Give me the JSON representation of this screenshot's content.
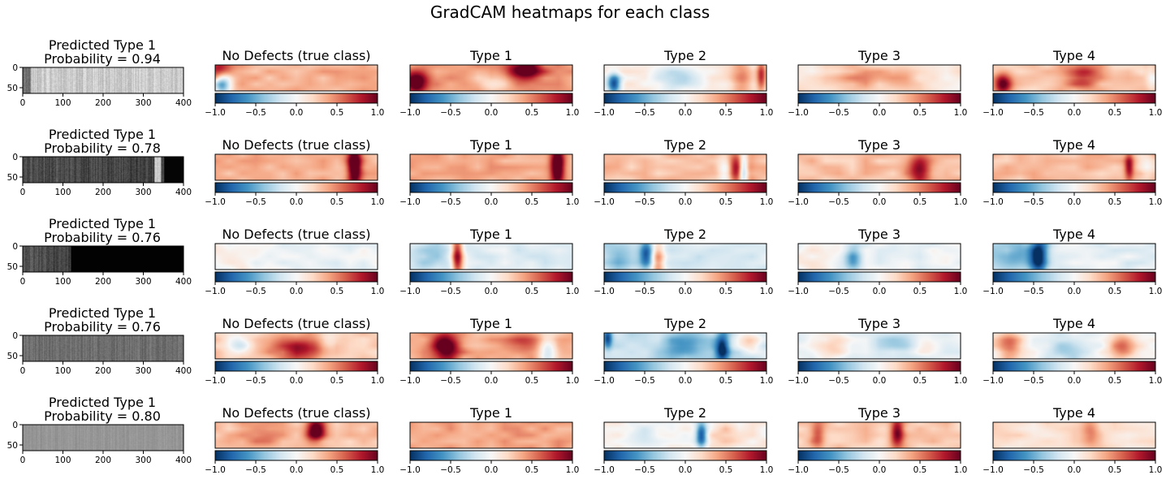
{
  "figure": {
    "title": "GradCAM heatmaps for each class"
  },
  "chart_data": {
    "type": "heatmap",
    "input_image": {
      "xticks": [
        0,
        100,
        200,
        300,
        400
      ],
      "yticks": [
        0,
        50
      ],
      "xlim": [
        0,
        400
      ],
      "ylim": [
        64,
        0
      ],
      "colormap": "gray"
    },
    "heatmap_colorbar": {
      "ticks": [
        -1.0,
        -0.5,
        0.0,
        0.5,
        1.0
      ],
      "tick_labels": [
        "−1.0",
        "−0.5",
        "0.0",
        "0.5",
        "1.0"
      ],
      "range": [
        -1.0,
        1.0
      ],
      "colormap": "RdBu_r",
      "colors": {
        "low": "#08519c",
        "mid": "#f7f7f7",
        "high": "#8b0a1f"
      }
    },
    "class_titles": [
      "No Defects (true class)",
      "Type 1",
      "Type 2",
      "Type 3",
      "Type 4"
    ],
    "rows": [
      {
        "predicted": "Predicted Type 1",
        "probability": "Probability = 0.94",
        "image_style": "light",
        "heatmaps": [
          {
            "base": 0.35,
            "blobs": [
              [
                0.04,
                0.75,
                -0.95,
                0.04,
                0.35
              ],
              [
                0.02,
                0.2,
                0.7,
                0.05,
                0.3
              ]
            ]
          },
          {
            "base": 0.42,
            "blobs": [
              [
                0.7,
                0.2,
                0.8,
                0.08,
                0.3
              ],
              [
                0.04,
                0.7,
                0.8,
                0.05,
                0.3
              ],
              [
                0.5,
                0.7,
                -0.25,
                0.08,
                0.3
              ]
            ]
          },
          {
            "base": 0.1,
            "blobs": [
              [
                0.06,
                0.75,
                -1.0,
                0.03,
                0.3
              ],
              [
                0.45,
                0.5,
                -0.35,
                0.12,
                0.4
              ],
              [
                0.85,
                0.5,
                0.45,
                0.05,
                0.5
              ],
              [
                0.97,
                0.4,
                0.6,
                0.02,
                0.5
              ]
            ]
          },
          {
            "base": 0.12,
            "blobs": [
              [
                0.35,
                0.5,
                0.3,
                0.1,
                0.4
              ],
              [
                0.6,
                0.4,
                0.25,
                0.1,
                0.4
              ]
            ]
          },
          {
            "base": 0.25,
            "blobs": [
              [
                0.06,
                0.75,
                0.85,
                0.04,
                0.3
              ],
              [
                0.55,
                0.4,
                0.5,
                0.08,
                0.4
              ],
              [
                0.98,
                0.5,
                -0.2,
                0.02,
                0.4
              ]
            ]
          }
        ]
      },
      {
        "predicted": "Predicted Type 1",
        "probability": "Probability = 0.78",
        "image_style": "dark-right",
        "heatmaps": [
          {
            "base": 0.35,
            "blobs": [
              [
                0.86,
                0.5,
                0.95,
                0.03,
                0.6
              ]
            ]
          },
          {
            "base": 0.38,
            "blobs": [
              [
                0.91,
                0.5,
                0.95,
                0.03,
                0.6
              ]
            ]
          },
          {
            "base": 0.3,
            "blobs": [
              [
                0.86,
                0.6,
                -0.9,
                0.02,
                0.5
              ],
              [
                0.75,
                0.7,
                -0.5,
                0.03,
                0.4
              ],
              [
                0.82,
                0.5,
                0.6,
                0.05,
                0.5
              ]
            ]
          },
          {
            "base": 0.3,
            "blobs": [
              [
                0.75,
                0.6,
                0.6,
                0.05,
                0.4
              ]
            ]
          },
          {
            "base": 0.3,
            "blobs": [
              [
                0.84,
                0.5,
                0.6,
                0.02,
                0.4
              ],
              [
                0.95,
                0.5,
                -0.2,
                0.03,
                0.4
              ]
            ]
          }
        ]
      },
      {
        "predicted": "Predicted Type 1",
        "probability": "Probability = 0.76",
        "image_style": "dark-left",
        "heatmaps": [
          {
            "base": -0.05,
            "blobs": [
              [
                0.1,
                0.5,
                0.15,
                0.1,
                0.5
              ]
            ]
          },
          {
            "base": -0.12,
            "blobs": [
              [
                0.29,
                0.5,
                1.0,
                0.025,
                0.6
              ],
              [
                0.1,
                0.5,
                -0.25,
                0.08,
                0.5
              ]
            ]
          },
          {
            "base": -0.15,
            "blobs": [
              [
                0.26,
                0.4,
                -0.7,
                0.03,
                0.4
              ],
              [
                0.33,
                0.6,
                0.65,
                0.03,
                0.5
              ],
              [
                0.1,
                0.5,
                -0.3,
                0.08,
                0.5
              ]
            ]
          },
          {
            "base": -0.05,
            "blobs": [
              [
                0.34,
                0.6,
                -0.5,
                0.04,
                0.5
              ],
              [
                0.1,
                0.5,
                0.15,
                0.08,
                0.5
              ]
            ]
          },
          {
            "base": -0.1,
            "blobs": [
              [
                0.28,
                0.5,
                -0.95,
                0.04,
                0.6
              ],
              [
                0.12,
                0.5,
                -0.4,
                0.1,
                0.5
              ]
            ]
          }
        ]
      },
      {
        "predicted": "Predicted Type 1",
        "probability": "Probability = 0.76",
        "image_style": "medium",
        "heatmaps": [
          {
            "base": 0.25,
            "blobs": [
              [
                0.15,
                0.4,
                -0.4,
                0.05,
                0.3
              ],
              [
                0.45,
                0.6,
                0.4,
                0.1,
                0.4
              ],
              [
                0.7,
                0.3,
                -0.3,
                0.05,
                0.3
              ],
              [
                0.6,
                0.6,
                0.45,
                0.08,
                0.3
              ]
            ]
          },
          {
            "base": 0.35,
            "blobs": [
              [
                0.22,
                0.5,
                0.85,
                0.06,
                0.4
              ],
              [
                0.85,
                0.7,
                -0.55,
                0.04,
                0.4
              ],
              [
                0.7,
                0.4,
                0.3,
                0.08,
                0.3
              ]
            ]
          },
          {
            "base": -0.2,
            "blobs": [
              [
                0.73,
                0.6,
                -0.9,
                0.03,
                0.4
              ],
              [
                0.5,
                0.5,
                -0.45,
                0.1,
                0.4
              ],
              [
                0.9,
                0.3,
                0.4,
                0.05,
                0.3
              ],
              [
                0.02,
                0.2,
                -0.7,
                0.02,
                0.3
              ]
            ]
          },
          {
            "base": -0.1,
            "blobs": [
              [
                0.2,
                0.5,
                0.35,
                0.08,
                0.4
              ],
              [
                0.6,
                0.4,
                -0.2,
                0.1,
                0.4
              ],
              [
                0.8,
                0.5,
                0.25,
                0.06,
                0.3
              ]
            ]
          },
          {
            "base": 0.0,
            "blobs": [
              [
                0.1,
                0.5,
                0.6,
                0.06,
                0.4
              ],
              [
                0.8,
                0.5,
                0.55,
                0.06,
                0.4
              ],
              [
                0.45,
                0.6,
                -0.35,
                0.1,
                0.4
              ]
            ]
          }
        ]
      },
      {
        "predicted": "Predicted Type 1",
        "probability": "Probability = 0.80",
        "image_style": "plain",
        "heatmaps": [
          {
            "base": 0.3,
            "blobs": [
              [
                0.62,
                0.3,
                0.9,
                0.04,
                0.3
              ],
              [
                0.3,
                0.5,
                0.2,
                0.1,
                0.4
              ]
            ]
          },
          {
            "base": 0.4,
            "blobs": []
          },
          {
            "base": 0.05,
            "blobs": [
              [
                0.6,
                0.5,
                -0.95,
                0.025,
                0.35
              ],
              [
                0.25,
                0.4,
                -0.2,
                0.08,
                0.4
              ],
              [
                0.75,
                0.5,
                0.2,
                0.08,
                0.4
              ]
            ]
          },
          {
            "base": 0.25,
            "blobs": [
              [
                0.61,
                0.4,
                0.8,
                0.03,
                0.4
              ],
              [
                0.12,
                0.5,
                0.4,
                0.03,
                0.4
              ]
            ]
          },
          {
            "base": 0.15,
            "blobs": [
              [
                0.6,
                0.4,
                0.35,
                0.04,
                0.4
              ]
            ]
          }
        ]
      }
    ]
  }
}
